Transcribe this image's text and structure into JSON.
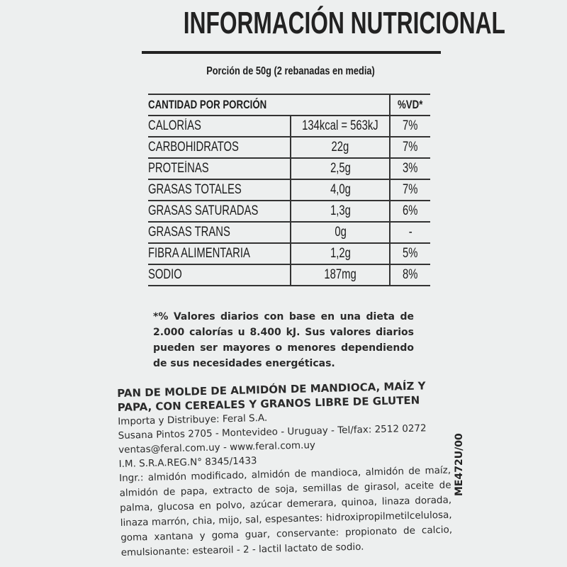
{
  "title": "INFORMACIÓN NUTRICIONAL",
  "portion": "Porción de 50g (2 rebanadas en media)",
  "table": {
    "header": {
      "label": "CANTIDAD POR PORCIÓN",
      "vd": "%VD*"
    },
    "rows": [
      {
        "label": "CALORÍAS",
        "value": "134kcal = 563kJ",
        "vd": "7%"
      },
      {
        "label": "CARBOHIDRATOS",
        "value": "22g",
        "vd": "7%"
      },
      {
        "label": "PROTEÍNAS",
        "value": "2,5g",
        "vd": "3%"
      },
      {
        "label": "GRASAS TOTALES",
        "value": "4,0g",
        "vd": "7%"
      },
      {
        "label": "GRASAS SATURADAS",
        "value": "1,3g",
        "vd": "6%"
      },
      {
        "label": "GRASAS TRANS",
        "value": "0g",
        "vd": "-"
      },
      {
        "label": "FIBRA ALIMENTARIA",
        "value": "1,2g",
        "vd": "5%"
      },
      {
        "label": "SODIO",
        "value": "187mg",
        "vd": "8%"
      }
    ]
  },
  "footnote": "*% Valores diarios con base en una dieta de 2.000 calorías u 8.400 kJ. Sus valores diarios pueden ser mayores o menores dependiendo de sus necesidades energéticas.",
  "product": {
    "name": "PAN DE MOLDE DE ALMIDÓN DE MANDIOCA, MAÍZ Y PAPA, CON CEREALES Y GRANOS LIBRE DE GLUTEN",
    "importer": "Importa y Distribuye: Feral S.A.",
    "address": "Susana Pintos 2705 - Montevideo - Uruguay - Tel/fax: 2512 0272",
    "contact": "ventas@feral.com.uy - www.feral.com.uy",
    "registry": "I.M. S.R.A.REG.N° 8345/1433",
    "ingredients": "Ingr.: almidón modificado, almidón de mandioca, almidón de maíz, almidón de papa, extracto de soja, semillas de girasol, aceite de palma, glucosa en polvo, azúcar demerara, quinoa, linaza dorada, linaza marrón, chia, mijo, sal, espesantes: hidroxipropilmetilcelulosa, goma xantana y goma guar, conservante: propionato de calcio, emulsionante: estearoil - 2 - lactil lactato de sodio.",
    "code": "ME472U/00"
  }
}
